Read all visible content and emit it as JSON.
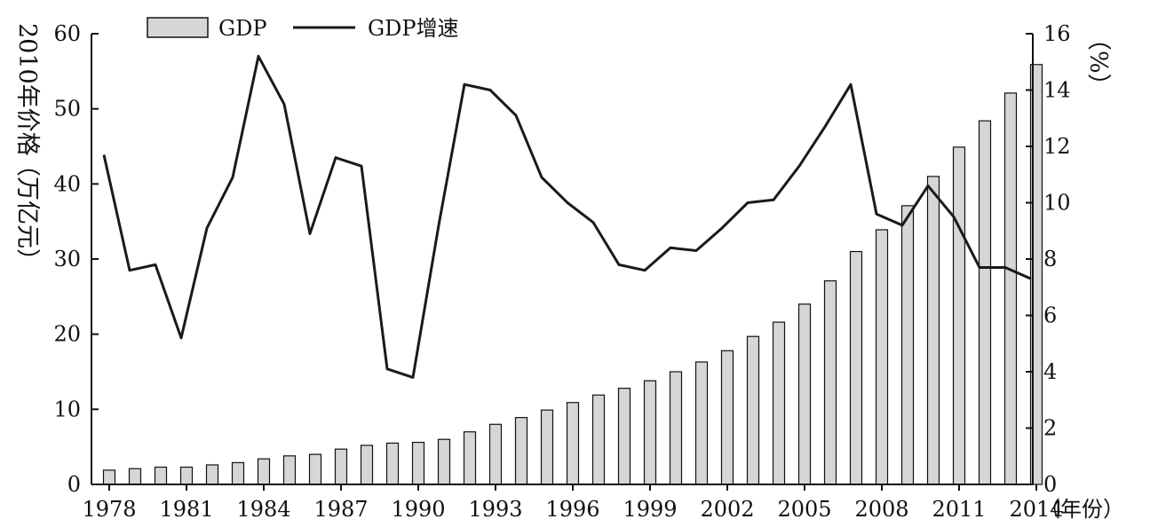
{
  "chart_data": {
    "type": "bar+line",
    "legend": {
      "placement": "top-left",
      "items": [
        {
          "label": "GDP",
          "kind": "bar"
        },
        {
          "label": "GDP增速",
          "kind": "line"
        }
      ]
    },
    "y_left_title": [
      "2010年价格",
      "（万亿元）"
    ],
    "y_right_title": "（%）",
    "x_unit_label": "（年份）",
    "y_left_range": [
      0,
      60
    ],
    "y_left_ticks": [
      0,
      10,
      20,
      30,
      40,
      50,
      60
    ],
    "y_right_range": [
      0,
      16
    ],
    "y_right_ticks": [
      0,
      2,
      4,
      6,
      8,
      10,
      12,
      14,
      16
    ],
    "x_tick_labels": [
      "1978",
      "1981",
      "1984",
      "1987",
      "1990",
      "1993",
      "1996",
      "1999",
      "2002",
      "2005",
      "2008",
      "2011",
      "2014"
    ],
    "years": [
      1978,
      1979,
      1980,
      1981,
      1982,
      1983,
      1984,
      1985,
      1986,
      1987,
      1988,
      1989,
      1990,
      1991,
      1992,
      1993,
      1994,
      1995,
      1996,
      1997,
      1998,
      1999,
      2000,
      2001,
      2002,
      2003,
      2004,
      2005,
      2006,
      2007,
      2008,
      2009,
      2010,
      2011,
      2012,
      2013,
      2014
    ],
    "series": [
      {
        "name": "GDP",
        "type": "bar",
        "axis": "left",
        "color": "#d4d6d8",
        "values": [
          1.9,
          2.1,
          2.3,
          2.3,
          2.6,
          2.9,
          3.4,
          3.8,
          4.0,
          4.7,
          5.2,
          5.5,
          5.6,
          6.0,
          7.0,
          8.0,
          8.9,
          9.9,
          10.9,
          11.9,
          12.8,
          13.8,
          15.0,
          16.3,
          17.8,
          19.7,
          21.6,
          24.0,
          27.1,
          31.0,
          33.9,
          37.1,
          41.0,
          44.9,
          48.4,
          52.1,
          55.9
        ]
      },
      {
        "name": "GDP增速",
        "type": "line",
        "axis": "right",
        "color": "#1a1a1a",
        "values": [
          11.7,
          7.6,
          7.8,
          5.2,
          9.1,
          10.9,
          15.2,
          13.5,
          8.9,
          11.6,
          11.3,
          4.1,
          3.8,
          9.2,
          14.2,
          14.0,
          13.1,
          10.9,
          10.0,
          9.3,
          7.8,
          7.6,
          8.4,
          8.3,
          9.1,
          10.0,
          10.1,
          11.3,
          12.7,
          14.2,
          9.6,
          9.2,
          10.6,
          9.5,
          7.7,
          7.7,
          7.3
        ]
      }
    ]
  }
}
